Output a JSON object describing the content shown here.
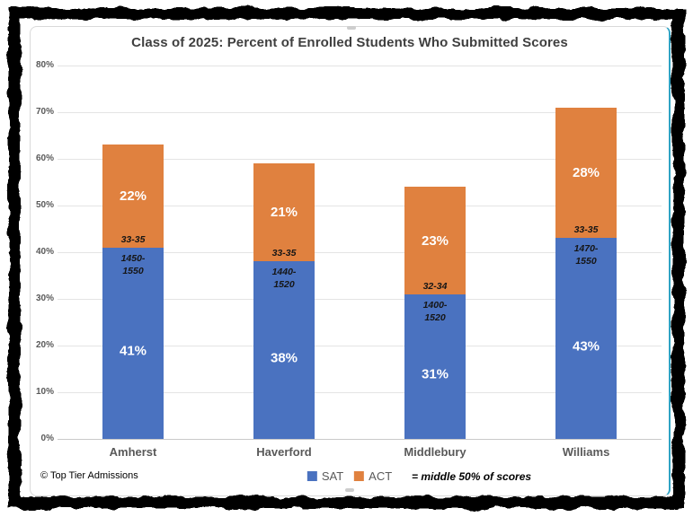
{
  "frame": {
    "color": "#000000",
    "style": "rough-sketch-border"
  },
  "chart": {
    "title": "Class of 2025: Percent of Enrolled Students Who Submitted Scores",
    "footer": {
      "copyright": "© Top Tier Admissions",
      "note": "= middle 50% of scores"
    }
  },
  "chart_data": {
    "type": "bar",
    "stacked": true,
    "title": "Class of 2025: Percent of Enrolled Students Who Submitted Scores",
    "categories": [
      "Amherst",
      "Haverford",
      "Middlebury",
      "Williams"
    ],
    "series": [
      {
        "name": "SAT",
        "color": "#4A72C0",
        "values": [
          41,
          38,
          31,
          43
        ],
        "value_labels": [
          "41%",
          "38%",
          "31%",
          "43%"
        ],
        "range_labels": [
          "1450-\n1550",
          "1440-\n1520",
          "1400-\n1520",
          "1470-\n1550"
        ]
      },
      {
        "name": "ACT",
        "color": "#E0813F",
        "values": [
          22,
          21,
          23,
          28
        ],
        "value_labels": [
          "22%",
          "21%",
          "23%",
          "28%"
        ],
        "range_labels": [
          "33-35",
          "33-35",
          "32-34",
          "33-35"
        ]
      }
    ],
    "totals": [
      63,
      59,
      54,
      71
    ],
    "xlabel": "",
    "ylabel": "",
    "ylim": [
      0,
      80
    ],
    "ytick_step": 10,
    "yticks": [
      "0%",
      "10%",
      "20%",
      "30%",
      "40%",
      "50%",
      "60%",
      "70%",
      "80%"
    ],
    "grid": true,
    "legend_position": "bottom",
    "annotation": "= middle 50% of scores"
  }
}
